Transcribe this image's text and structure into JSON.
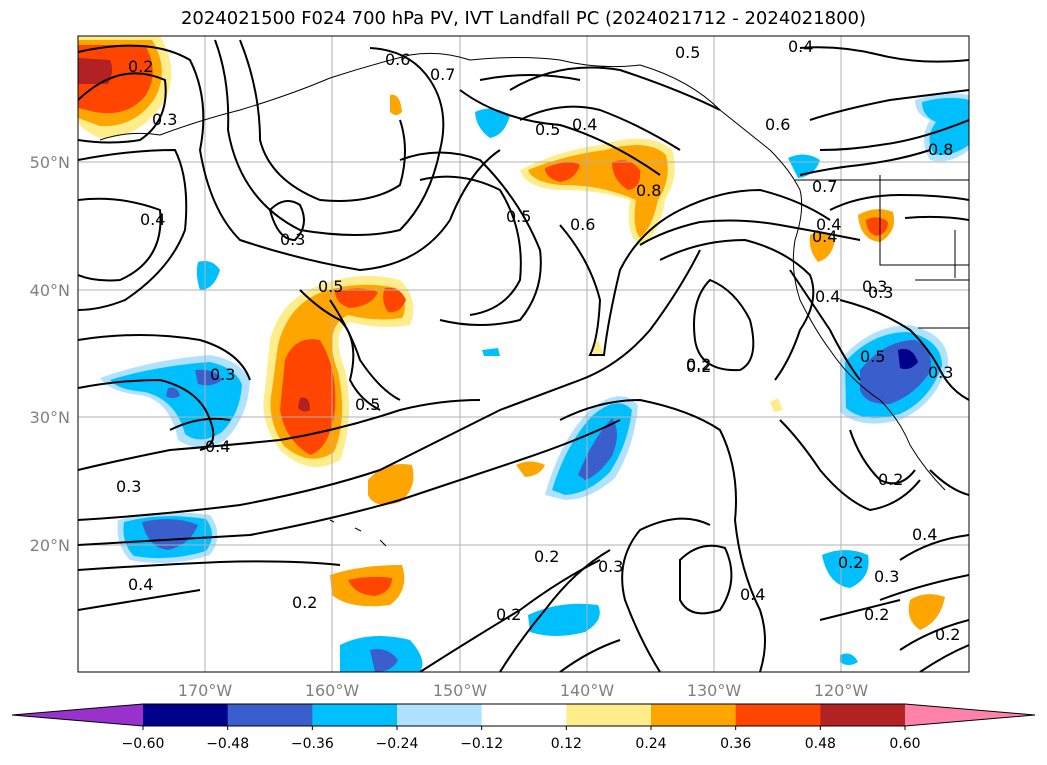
{
  "title": "2024021500 F024 700 hPa PV, IVT Landfall PC (2024021712 - 2024021800)",
  "lat_labels": [
    "50°N",
    "40°N",
    "30°N",
    "20°N"
  ],
  "lon_labels": [
    "170°W",
    "160°W",
    "150°W",
    "140°W",
    "130°W",
    "120°W"
  ],
  "colorbar": {
    "ticks": [
      "−0.60",
      "−0.48",
      "−0.36",
      "−0.24",
      "−0.12",
      "0.12",
      "0.24",
      "0.36",
      "0.48",
      "0.60"
    ],
    "colors": [
      "#9932cc",
      "#00008b",
      "#3a5fcd",
      "#00bfff",
      "#b0e2ff",
      "#ffffff",
      "#ffec8b",
      "#ffa500",
      "#ff4500",
      "#b22222",
      "#ff82ab"
    ]
  },
  "contour_labels": [
    "0.2",
    "0.3",
    "0.6",
    "0.7",
    "0.5",
    "0.4",
    "0.5",
    "0.4",
    "0.6",
    "0.8",
    "0.7",
    "0.8",
    "0.4",
    "0.3",
    "0.5",
    "0.6",
    "0.4",
    "0.3",
    "0.3",
    "0.5",
    "0.3",
    "0.4",
    "0.5",
    "0.5",
    "0.2",
    "0.4",
    "0.3",
    "0.4",
    "0.2",
    "0.3",
    "0.4",
    "0.2",
    "0.2",
    "0.2",
    "0.3",
    "0.2",
    "0.4",
    "0.4",
    "0.3",
    "0.2",
    "0.2",
    "0.2"
  ]
}
